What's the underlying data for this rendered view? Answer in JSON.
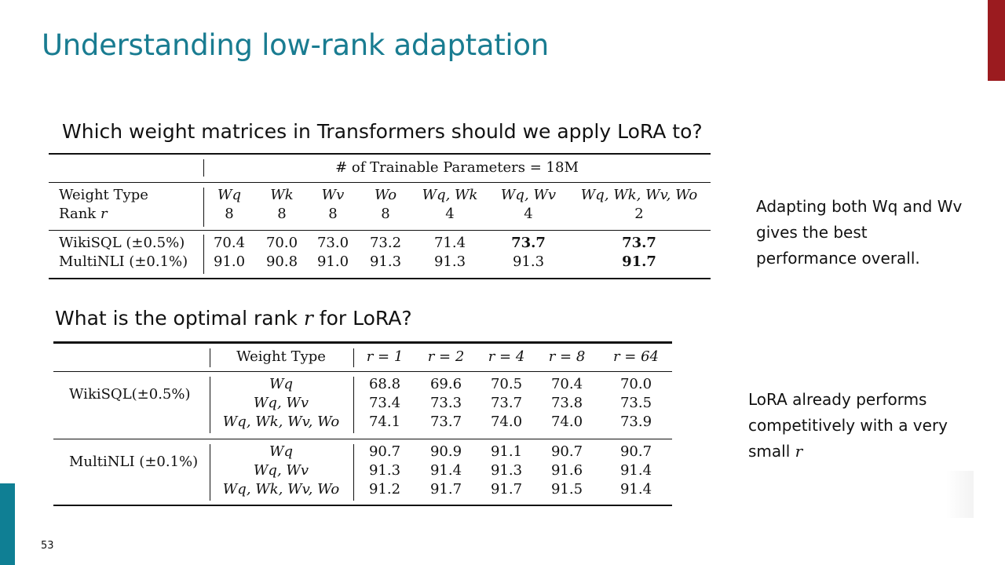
{
  "slide": {
    "title": "Understanding low-rank adaptation",
    "page_number": "53"
  },
  "q1": {
    "text": "Which weight matrices in Transformers should we apply LoRA to?"
  },
  "q2": {
    "text_before": "What is the optimal rank ",
    "var": "r",
    "text_after": " for LoRA?"
  },
  "note1": {
    "text": "Adapting both Wq and Wv gives the best performance overall."
  },
  "note2": {
    "text": "LoRA already performs competitively with a very small ",
    "var": "r"
  },
  "table1": {
    "caption": "# of Trainable Parameters = 18M",
    "label_weight": "Weight Type",
    "label_rank": "Rank",
    "label_rank_var": "r",
    "columns": [
      {
        "weights": "Wq",
        "rank": "8"
      },
      {
        "weights": "Wk",
        "rank": "8"
      },
      {
        "weights": "Wv",
        "rank": "8"
      },
      {
        "weights": "Wo",
        "rank": "8"
      },
      {
        "weights": "Wq, Wk",
        "rank": "4"
      },
      {
        "weights": "Wq, Wv",
        "rank": "4"
      },
      {
        "weights": "Wq, Wk, Wv, Wo",
        "rank": "2"
      }
    ],
    "rows": [
      {
        "label": "WikiSQL (±0.5%)",
        "values": [
          "70.4",
          "70.0",
          "73.0",
          "73.2",
          "71.4",
          "73.7",
          "73.7"
        ],
        "bold": [
          false,
          false,
          false,
          false,
          false,
          true,
          true
        ]
      },
      {
        "label": "MultiNLI (±0.1%)",
        "values": [
          "91.0",
          "90.8",
          "91.0",
          "91.3",
          "91.3",
          "91.3",
          "91.7"
        ],
        "bold": [
          false,
          false,
          false,
          false,
          false,
          false,
          true
        ]
      }
    ]
  },
  "table2": {
    "header_weight": "Weight Type",
    "ranks": [
      "r = 1",
      "r = 2",
      "r = 4",
      "r = 8",
      "r = 64"
    ],
    "groups": [
      {
        "label": "WikiSQL(±0.5%)",
        "rows": [
          {
            "weights": "Wq",
            "values": [
              "68.8",
              "69.6",
              "70.5",
              "70.4",
              "70.0"
            ]
          },
          {
            "weights": "Wq, Wv",
            "values": [
              "73.4",
              "73.3",
              "73.7",
              "73.8",
              "73.5"
            ]
          },
          {
            "weights": "Wq, Wk, Wv, Wo",
            "values": [
              "74.1",
              "73.7",
              "74.0",
              "74.0",
              "73.9"
            ]
          }
        ]
      },
      {
        "label": "MultiNLI (±0.1%)",
        "rows": [
          {
            "weights": "Wq",
            "values": [
              "90.7",
              "90.9",
              "91.1",
              "90.7",
              "90.7"
            ]
          },
          {
            "weights": "Wq, Wv",
            "values": [
              "91.3",
              "91.4",
              "91.3",
              "91.6",
              "91.4"
            ]
          },
          {
            "weights": "Wq, Wk, Wv, Wo",
            "values": [
              "91.2",
              "91.7",
              "91.7",
              "91.5",
              "91.4"
            ]
          }
        ]
      }
    ]
  }
}
